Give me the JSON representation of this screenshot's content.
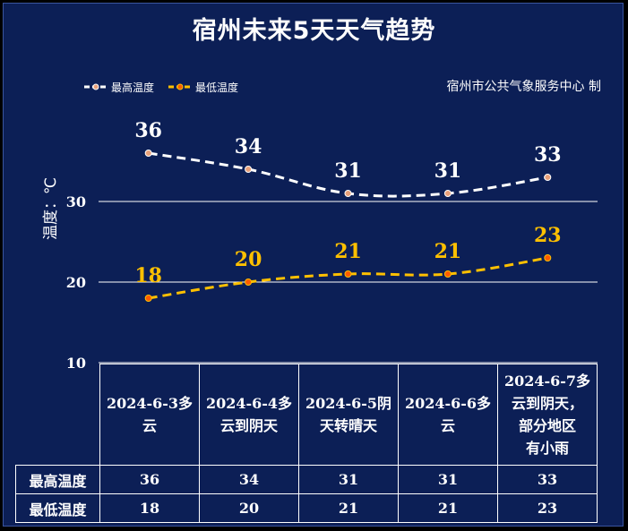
{
  "title": "宿州未来5天天气趋势",
  "credit": "宿州市公共气象服务中心 制",
  "legend": {
    "high": "最高温度",
    "low": "最低温度"
  },
  "colors": {
    "background": "#0c1f56",
    "high_line": "#ffffff",
    "low_line": "#ffc000",
    "high_marker": "#e8a07a",
    "low_marker": "#ff5a00"
  },
  "chart_data": {
    "type": "line",
    "title": "宿州未来5天天气趋势",
    "ylabel": "温度：℃",
    "ylim": [
      10,
      40
    ],
    "yticks": [
      "10",
      "20",
      "30"
    ],
    "categories": [
      "2024-6-3多云",
      "2024-6-4多云到阴天",
      "2024-6-5阴天转晴天",
      "2024-6-6多云",
      "2024-6-7多云到阴天，部分地区有小雨"
    ],
    "series": [
      {
        "name": "最高温度",
        "values": [
          36,
          34,
          31,
          31,
          33
        ]
      },
      {
        "name": "最低温度",
        "values": [
          18,
          20,
          21,
          21,
          23
        ]
      }
    ],
    "grid": true,
    "legend_position": "top-left"
  },
  "table": {
    "date_lines": [
      [
        "2024-6-3多",
        "云"
      ],
      [
        "2024-6-4多",
        "云到阴天"
      ],
      [
        "2024-6-5阴",
        "天转晴天"
      ],
      [
        "2024-6-6多",
        "云"
      ],
      [
        "2024-6-7多",
        "云到阴天，",
        "部分地区",
        "有小雨"
      ]
    ],
    "row_high_label": "最高温度",
    "row_low_label": "最低温度",
    "high": [
      "36",
      "34",
      "31",
      "31",
      "33"
    ],
    "low": [
      "18",
      "20",
      "21",
      "21",
      "23"
    ]
  }
}
